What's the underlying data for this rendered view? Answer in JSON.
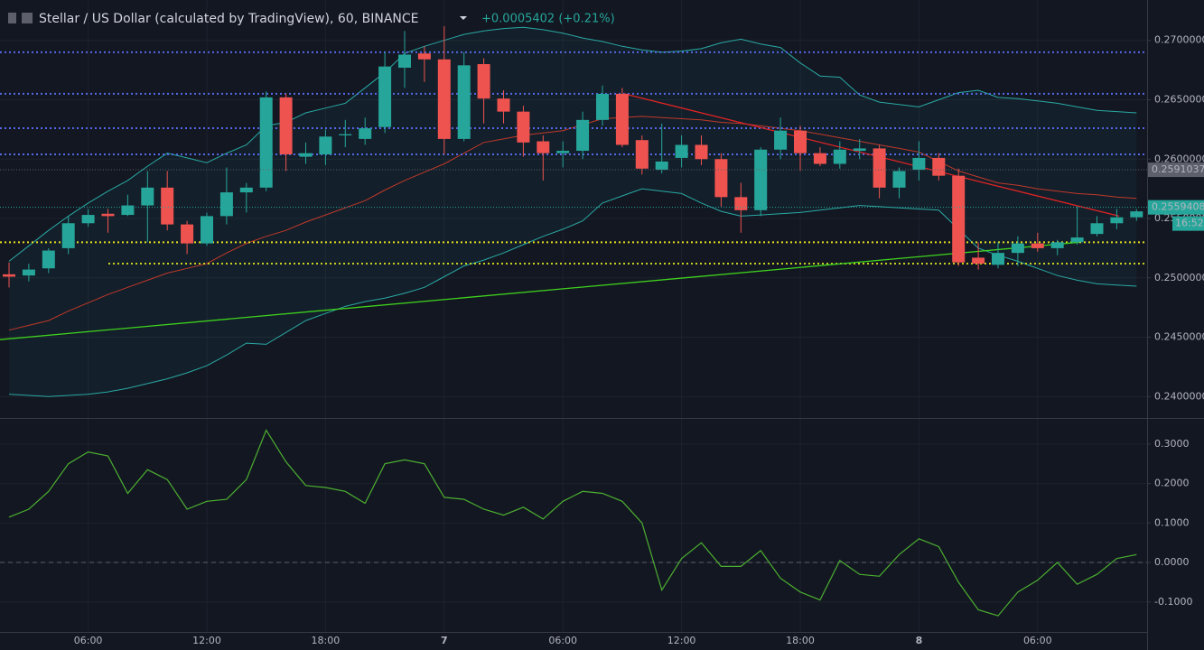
{
  "chart_data": [
    {
      "type": "candlestick",
      "title": "Stellar / US Dollar (calculated by TradingView), 60, BINANCE",
      "subtitle": "+0.0005402 (+0.21%)",
      "categories": [
        null,
        null,
        null,
        null,
        "06:00",
        null,
        null,
        null,
        null,
        null,
        "12:00",
        null,
        null,
        null,
        null,
        null,
        "18:00",
        null,
        null,
        null,
        null,
        null,
        "7",
        null,
        null,
        null,
        null,
        null,
        "06:00",
        null,
        null,
        null,
        null,
        null,
        "12:00",
        null,
        null,
        null,
        null,
        null,
        "18:00",
        null,
        null,
        null,
        null,
        null,
        "8",
        null,
        null,
        null,
        null,
        null,
        "06:00",
        null,
        null,
        null,
        null,
        null
      ],
      "open": [
        0.2503,
        0.2502,
        0.2508,
        0.2525,
        0.2546,
        0.2554,
        0.2553,
        0.2561,
        0.2576,
        0.2545,
        0.2529,
        0.2552,
        0.2572,
        0.2576,
        0.2652,
        0.2602,
        0.2604,
        0.262,
        0.2617,
        0.2627,
        0.2677,
        0.2689,
        0.2684,
        0.2617,
        0.268,
        0.2651,
        0.264,
        0.2615,
        0.2605,
        0.2607,
        0.2633,
        0.2655,
        0.2616,
        0.2591,
        0.2601,
        0.2612,
        0.26,
        0.2568,
        0.2557,
        0.2608,
        0.2624,
        0.2605,
        0.2596,
        0.2607,
        0.2609,
        0.2576,
        0.2591,
        0.2601,
        0.2586,
        0.2517,
        0.2511,
        0.2521,
        0.2529,
        0.2525,
        0.253,
        0.2537,
        0.2546,
        0.2551
      ],
      "high": [
        0.2513,
        0.2512,
        0.2525,
        0.2552,
        0.2558,
        0.2558,
        0.257,
        0.259,
        0.259,
        0.2548,
        0.2555,
        0.2593,
        0.258,
        0.2657,
        0.2655,
        0.2614,
        0.2625,
        0.2633,
        0.2635,
        0.269,
        0.2708,
        0.2695,
        0.2712,
        0.269,
        0.2685,
        0.2658,
        0.2645,
        0.262,
        0.2615,
        0.264,
        0.2662,
        0.266,
        0.262,
        0.263,
        0.262,
        0.262,
        0.2605,
        0.258,
        0.261,
        0.2635,
        0.2628,
        0.261,
        0.2615,
        0.2617,
        0.2612,
        0.2593,
        0.2615,
        0.2605,
        0.2592,
        0.253,
        0.253,
        0.2535,
        0.2538,
        0.2532,
        0.256,
        0.2552,
        0.2558,
        0.2558
      ],
      "low": [
        0.2492,
        0.2497,
        0.2504,
        0.252,
        0.2543,
        0.2538,
        0.2552,
        0.253,
        0.254,
        0.252,
        0.2527,
        0.2545,
        0.2555,
        0.2573,
        0.259,
        0.2596,
        0.2595,
        0.261,
        0.2612,
        0.2622,
        0.266,
        0.2665,
        0.2604,
        0.2615,
        0.263,
        0.263,
        0.2602,
        0.2582,
        0.2593,
        0.26,
        0.2628,
        0.261,
        0.2587,
        0.2588,
        0.2593,
        0.2595,
        0.256,
        0.2538,
        0.2552,
        0.26,
        0.259,
        0.2594,
        0.2592,
        0.26,
        0.2567,
        0.2567,
        0.2582,
        0.2582,
        0.251,
        0.2507,
        0.2508,
        0.251,
        0.2522,
        0.2519,
        0.2528,
        0.2535,
        0.2541,
        0.2548
      ],
      "close": [
        0.2501,
        0.2507,
        0.2523,
        0.2546,
        0.2553,
        0.2552,
        0.2561,
        0.2576,
        0.2545,
        0.2529,
        0.2552,
        0.2572,
        0.2576,
        0.2652,
        0.2604,
        0.2605,
        0.2619,
        0.2621,
        0.2626,
        0.2678,
        0.2688,
        0.2684,
        0.2617,
        0.2679,
        0.2651,
        0.264,
        0.2614,
        0.2605,
        0.2607,
        0.2633,
        0.2655,
        0.2612,
        0.2592,
        0.2598,
        0.2612,
        0.26,
        0.2568,
        0.2557,
        0.2608,
        0.2624,
        0.2605,
        0.2596,
        0.2608,
        0.2609,
        0.2576,
        0.259,
        0.2601,
        0.2586,
        0.2513,
        0.2512,
        0.2521,
        0.2529,
        0.2525,
        0.253,
        0.2534,
        0.2546,
        0.2551,
        0.2556
      ],
      "up_color": "#26a69a",
      "down_color": "#ef5350",
      "bands": {
        "upper": [
          0.2514,
          0.2527,
          0.254,
          0.2552,
          0.2563,
          0.2573,
          0.2582,
          0.2594,
          0.2605,
          0.2601,
          0.2597,
          0.2605,
          0.2612,
          0.2628,
          0.2631,
          0.2639,
          0.2643,
          0.2647,
          0.266,
          0.2673,
          0.2689,
          0.2695,
          0.27,
          0.2705,
          0.2708,
          0.271,
          0.2711,
          0.2709,
          0.2706,
          0.2702,
          0.2699,
          0.2695,
          0.2692,
          0.269,
          0.2691,
          0.2693,
          0.2698,
          0.2701,
          0.2697,
          0.2694,
          0.2681,
          0.267,
          0.2669,
          0.2654,
          0.2648,
          0.2646,
          0.2644,
          0.265,
          0.2656,
          0.2658,
          0.2652,
          0.2651,
          0.2649,
          0.2647,
          0.2644,
          0.2641,
          0.264,
          0.2639
        ],
        "middle": [
          0.2456,
          0.246,
          0.2464,
          0.2472,
          0.2479,
          0.2486,
          0.2492,
          0.2498,
          0.2504,
          0.2508,
          0.2512,
          0.2521,
          0.2529,
          0.2535,
          0.254,
          0.2547,
          0.2553,
          0.2559,
          0.2565,
          0.2574,
          0.2582,
          0.2589,
          0.2596,
          0.2605,
          0.2614,
          0.2617,
          0.262,
          0.2622,
          0.2624,
          0.2629,
          0.2634,
          0.2635,
          0.2636,
          0.2635,
          0.2634,
          0.2633,
          0.2631,
          0.263,
          0.2628,
          0.2626,
          0.2624,
          0.2621,
          0.2618,
          0.2615,
          0.2612,
          0.2609,
          0.2606,
          0.2598,
          0.259,
          0.2585,
          0.258,
          0.2578,
          0.2575,
          0.2573,
          0.2571,
          0.257,
          0.2568,
          0.2567
        ],
        "lower": [
          0.2402,
          0.2401,
          0.24,
          0.2401,
          0.2402,
          0.2404,
          0.2407,
          0.2411,
          0.2415,
          0.242,
          0.2426,
          0.2435,
          0.2445,
          0.2444,
          0.2454,
          0.2464,
          0.247,
          0.2476,
          0.248,
          0.2483,
          0.2487,
          0.2492,
          0.2501,
          0.251,
          0.2515,
          0.2521,
          0.2528,
          0.2535,
          0.2541,
          0.2548,
          0.2563,
          0.2569,
          0.2575,
          0.2573,
          0.2571,
          0.2563,
          0.2556,
          0.2552,
          0.2553,
          0.2554,
          0.2555,
          0.2557,
          0.2559,
          0.2561,
          0.256,
          0.2559,
          0.2558,
          0.2557,
          0.2541,
          0.2525,
          0.2519,
          0.2514,
          0.2508,
          0.2502,
          0.2498,
          0.2495,
          0.2494,
          0.2493
        ],
        "line_color": "#2aa9a4",
        "middle_color": "#c0392b"
      },
      "levels": [
        {
          "value": 0.269,
          "color": "#5468e8"
        },
        {
          "value": 0.2655,
          "color": "#5468e8"
        },
        {
          "value": 0.2626,
          "color": "#5468e8"
        },
        {
          "value": 0.2604,
          "color": "#5468e8"
        },
        {
          "value": 0.253,
          "color": "#e6e021"
        },
        {
          "value": 0.2512,
          "color": "#c9d122"
        }
      ],
      "trendlines": [
        {
          "color": "#e02424",
          "values": [
            0.2655,
            0.2552
          ]
        },
        {
          "color": "#3fd11e",
          "values": [
            0.2448,
            0.253
          ]
        }
      ],
      "price_labels": [
        {
          "value": 0.2591037,
          "label": "0.2591037",
          "color": "#5d606b"
        },
        {
          "value": 0.2559408,
          "label": "0.2559408",
          "color": "#26a69a"
        }
      ],
      "countdown": "16:52",
      "ylim": [
        0.2382,
        0.2734
      ],
      "yticks": [
        {
          "value": 0.24,
          "label": "0.2400000"
        },
        {
          "value": 0.245,
          "label": "0.2450000"
        },
        {
          "value": 0.25,
          "label": "0.2500000"
        },
        {
          "value": 0.255,
          "label": "0.2550000"
        },
        {
          "value": 0.26,
          "label": "0.2600000"
        },
        {
          "value": 0.265,
          "label": "0.2650000"
        },
        {
          "value": 0.27,
          "label": "0.2700000"
        }
      ],
      "grid": true
    },
    {
      "type": "line",
      "values": [
        0.115,
        0.135,
        0.18,
        0.25,
        0.28,
        0.27,
        0.175,
        0.235,
        0.21,
        0.135,
        0.155,
        0.16,
        0.21,
        0.335,
        0.255,
        0.195,
        0.19,
        0.18,
        0.15,
        0.25,
        0.26,
        0.25,
        0.165,
        0.16,
        0.135,
        0.12,
        0.14,
        0.11,
        0.155,
        0.18,
        0.175,
        0.155,
        0.1,
        -0.07,
        0.01,
        0.05,
        -0.01,
        -0.01,
        0.03,
        -0.04,
        -0.075,
        -0.095,
        0.005,
        -0.03,
        -0.035,
        0.02,
        0.06,
        0.04,
        -0.05,
        -0.12,
        -0.135,
        -0.075,
        -0.045,
        0.0,
        -0.055,
        -0.03,
        0.01,
        0.02
      ],
      "color": "#4caf30",
      "ylim": [
        -0.176,
        0.366
      ],
      "yticks": [
        {
          "value": -0.1,
          "label": "-0.1000"
        },
        {
          "value": 0,
          "label": "0.0000"
        },
        {
          "value": 0.1,
          "label": "0.1000"
        },
        {
          "value": 0.2,
          "label": "0.2000"
        },
        {
          "value": 0.3,
          "label": "0.3000"
        }
      ],
      "grid": true
    }
  ]
}
